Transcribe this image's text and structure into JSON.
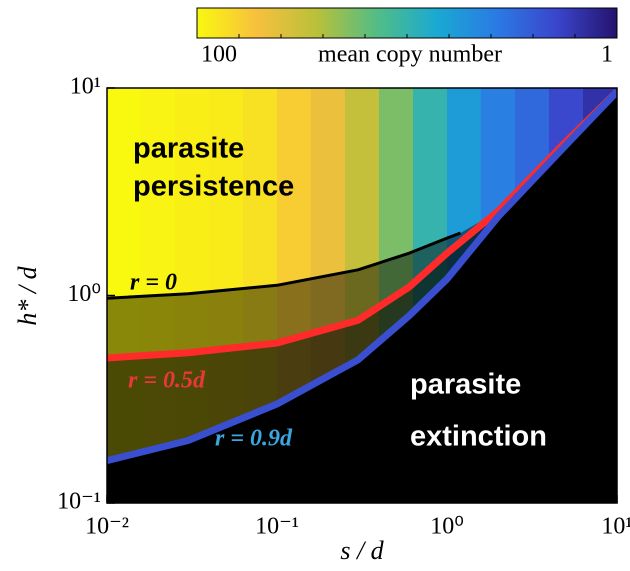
{
  "chart_data": {
    "type": "heatmap",
    "xlabel": "s / d",
    "ylabel": "h* / d",
    "xscale": "log",
    "yscale": "log",
    "xlim": [
      0.01,
      10
    ],
    "ylim": [
      0.1,
      10
    ],
    "xticks": [
      {
        "value": 0.01,
        "label": "10⁻²"
      },
      {
        "value": 0.1,
        "label": "10⁻¹"
      },
      {
        "value": 1,
        "label": "10⁰"
      },
      {
        "value": 10,
        "label": "10¹"
      }
    ],
    "yticks": [
      {
        "value": 0.1,
        "label": "10⁻¹"
      },
      {
        "value": 1,
        "label": "10⁰"
      },
      {
        "value": 10,
        "label": "10¹"
      }
    ],
    "colorbar_label": "mean copy number",
    "clim": [
      100,
      1
    ],
    "cticks": [
      100,
      1
    ],
    "colormap": [
      "#f9f80f",
      "#f7c03d",
      "#b9c03a",
      "#52bd85",
      "#19a9d2",
      "#2b7ae4",
      "#3a45cc",
      "#24136e"
    ],
    "heatmap": {
      "bins": [
        0.01,
        0.0158,
        0.0251,
        0.0398,
        0.0631,
        0.1,
        0.158,
        0.251,
        0.398,
        0.631,
        1,
        1.58,
        2.51,
        3.98,
        6.31,
        10
      ],
      "values": [
        100,
        95,
        90,
        85,
        75,
        60,
        45,
        30,
        18,
        10,
        6,
        4,
        3,
        2,
        1.5
      ]
    },
    "regions": [
      "parasite",
      "persistence",
      "parasite",
      "extinction"
    ],
    "series": [
      {
        "name": "r = 0",
        "color": "#000000",
        "label_color": "#000000",
        "x": [
          0.01,
          0.03,
          0.1,
          0.3,
          0.6,
          1,
          1.2
        ],
        "values": [
          0.97,
          1.02,
          1.12,
          1.33,
          1.6,
          1.89,
          2.0
        ]
      },
      {
        "name": "r = 0.5d",
        "color": "#ff2b2b",
        "label_color": "#e8383a",
        "x": [
          0.01,
          0.03,
          0.1,
          0.3,
          0.6,
          1,
          2,
          5,
          10
        ],
        "values": [
          0.5,
          0.53,
          0.59,
          0.76,
          1.1,
          1.6,
          2.55,
          5.5,
          9.6
        ]
      },
      {
        "name": "r = 0.9d",
        "color": "#3a4fd0",
        "label_color": "#3aa8e0",
        "x": [
          0.01,
          0.03,
          0.1,
          0.3,
          0.6,
          1,
          2,
          5,
          10
        ],
        "values": [
          0.16,
          0.2,
          0.3,
          0.49,
          0.8,
          1.2,
          2.4,
          5.3,
          9.6
        ]
      }
    ]
  }
}
